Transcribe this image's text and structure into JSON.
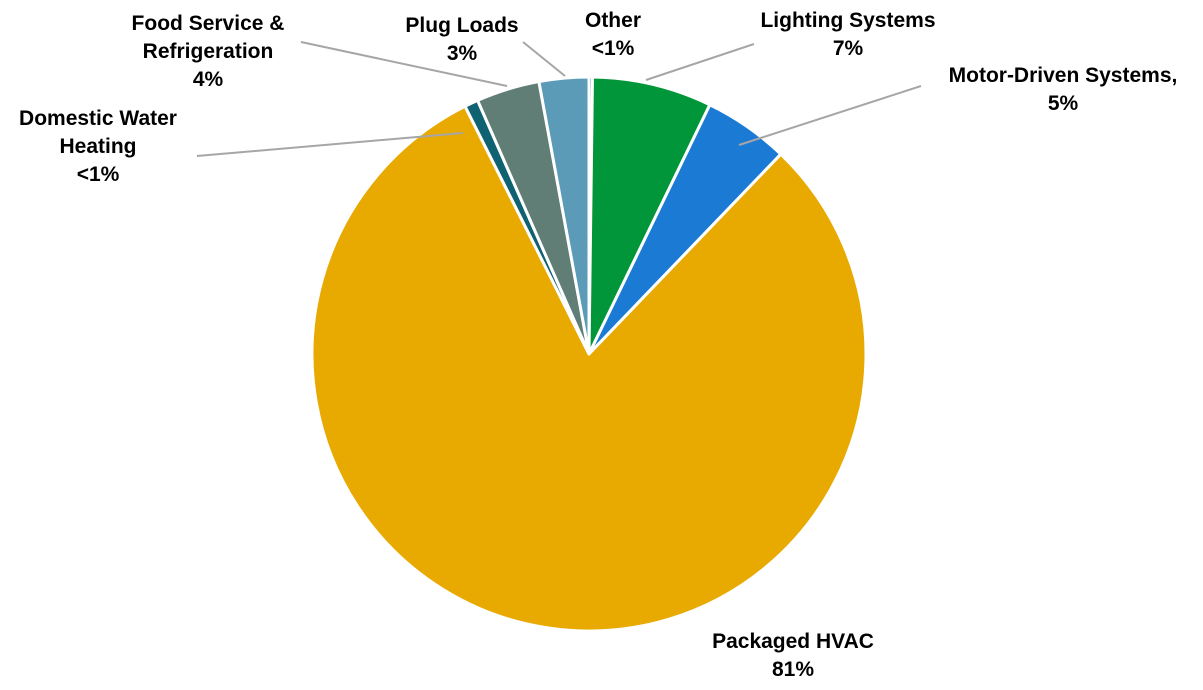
{
  "chart_data": {
    "type": "pie",
    "title": "",
    "start_angle_deg": 0,
    "direction": "clockwise",
    "slices": [
      {
        "label": "Other",
        "value": 0.2,
        "value_label": "<1%",
        "color": "#2e75b6"
      },
      {
        "label": "Lighting Systems",
        "value": 7,
        "value_label": "7%",
        "color": "#009639"
      },
      {
        "label": "Motor-Driven Systems,",
        "value": 5,
        "value_label": "5%",
        "color": "#1b7ad4"
      },
      {
        "label": "Packaged HVAC",
        "value": 80.6,
        "value_label": "81%",
        "color": "#e8a900"
      },
      {
        "label": "Domestic Water Heating",
        "value": 0.8,
        "value_label": "<1%",
        "color": "#0e6271"
      },
      {
        "label": "Food Service & Refrigeration",
        "value": 3.7,
        "value_label": "4%",
        "color": "#607d76"
      },
      {
        "label": "Plug Loads",
        "value": 2.9,
        "value_label": "3%",
        "color": "#5b9bb8"
      }
    ],
    "legend": "none",
    "leader_line_color": "#a6a6a6"
  }
}
